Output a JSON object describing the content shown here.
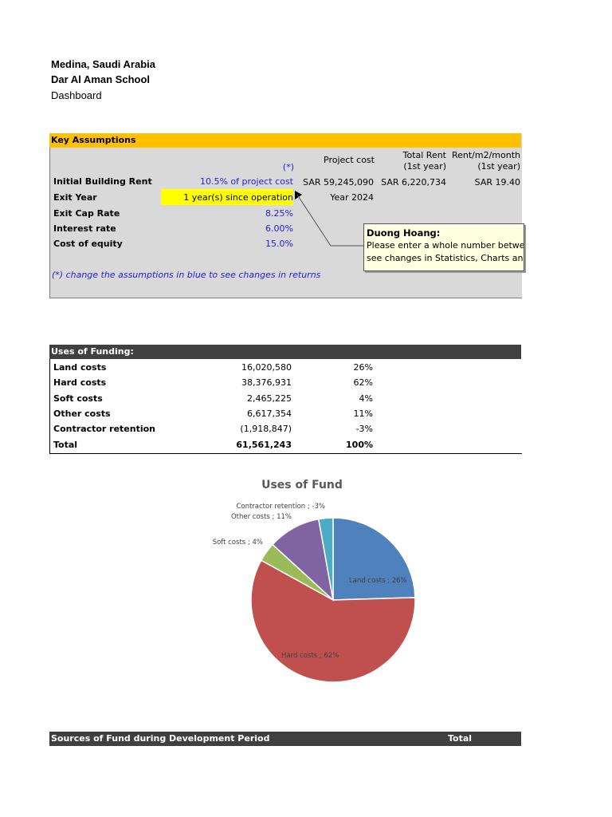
{
  "header": {
    "location": "Medina, Saudi Arabia",
    "school": "Dar Al Aman School",
    "page": "Dashboard"
  },
  "assumptions": {
    "title": "Key Assumptions",
    "star_note": "(*)",
    "col_project_cost": "Project cost",
    "col_total_rent_1": "Total Rent",
    "col_total_rent_2": "(1st year)",
    "col_rent_m2_1": "Rent/m2/month",
    "col_rent_m2_2": "(1st year)",
    "rows": [
      {
        "label": "Initial Building Rent",
        "value": "10.5% of project cost"
      },
      {
        "label": "Exit Year",
        "value": "1 year(s) since operation"
      },
      {
        "label": "Exit Cap Rate",
        "value": "8.25%"
      },
      {
        "label": "Interest rate",
        "value": "6.00%"
      },
      {
        "label": "Cost of equity",
        "value": "15.0%"
      }
    ],
    "project_cost_value": "SAR 59,245,090",
    "total_rent_value": "SAR 6,220,734",
    "rent_m2_value": "SAR 19.40",
    "exit_year_value": "Year 2024",
    "footnote": "(*) change the assumptions in blue to see changes in returns"
  },
  "comment": {
    "author": "Duong Hoang:",
    "line1": "Please enter a whole number between",
    "line2": "see changes in Statistics, Charts and Re"
  },
  "uses": {
    "title": "Uses of Funding:",
    "rows": [
      {
        "label": "Land costs",
        "amount": "16,020,580",
        "pct": "26%"
      },
      {
        "label": "Hard costs",
        "amount": "38,376,931",
        "pct": "62%"
      },
      {
        "label": "Soft costs",
        "amount": "2,465,225",
        "pct": "4%"
      },
      {
        "label": "Other costs",
        "amount": "6,617,354",
        "pct": "11%"
      },
      {
        "label": "Contractor retention",
        "amount": "(1,918,847)",
        "pct": "-3%"
      }
    ],
    "total": {
      "label": "Total",
      "amount": "61,561,243",
      "pct": "100%"
    }
  },
  "chart_data": {
    "type": "pie",
    "title": "Uses of Fund",
    "categories": [
      "Land costs",
      "Hard costs",
      "Soft costs",
      "Other costs",
      "Contractor retention"
    ],
    "values": [
      26,
      62,
      4,
      11,
      -3
    ],
    "slice_labels": [
      "Land costs ; 26%",
      "Hard costs ; 62%",
      "Soft costs ; 4%",
      "Other costs ; 11%",
      "Contractor retention ; -3%"
    ],
    "colors": [
      "#4f81bd",
      "#c0504d",
      "#9bbb59",
      "#8064a2",
      "#4bacc6"
    ]
  },
  "sources": {
    "title": "Sources of Fund during Development Period",
    "total_label": "Total"
  }
}
